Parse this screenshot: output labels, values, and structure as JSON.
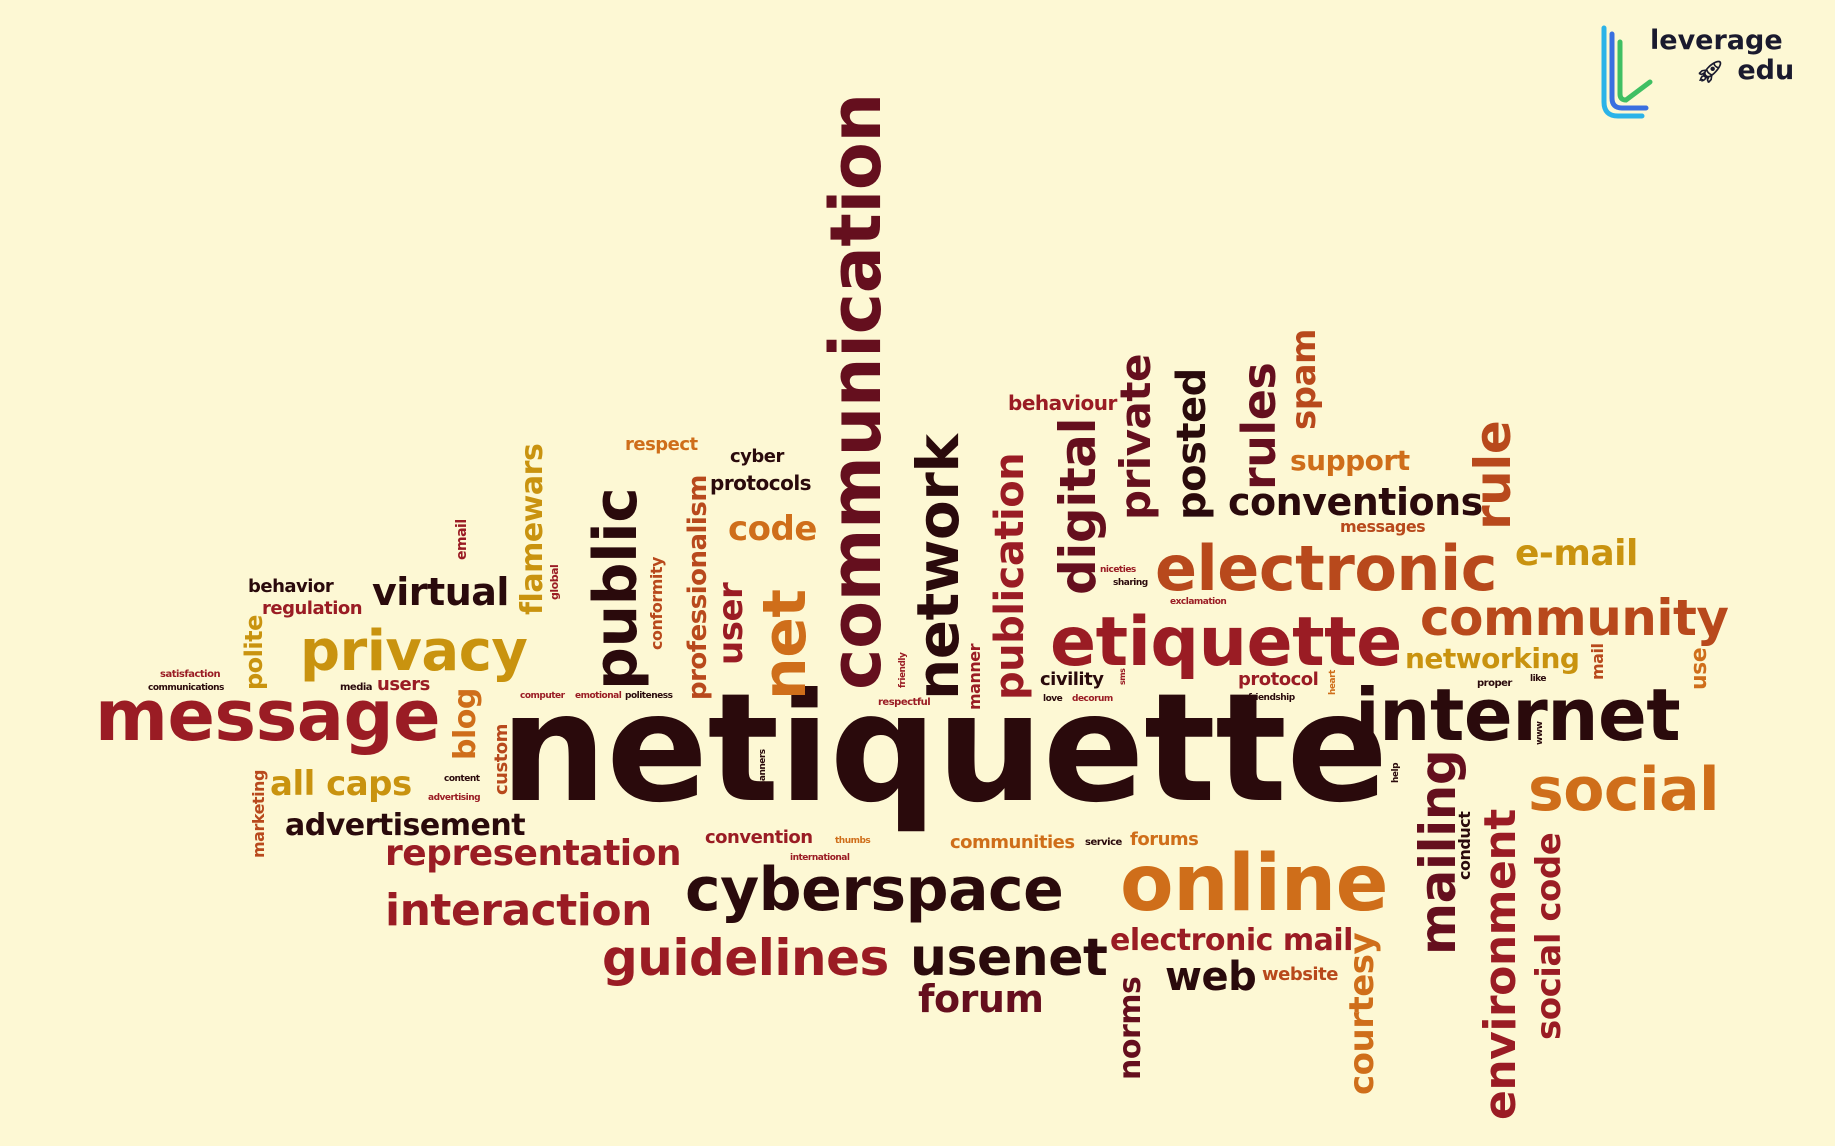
{
  "palette": {
    "background": "#fdf8d4",
    "dark": "#2a0a0c",
    "maroon": "#650f1e",
    "crimson": "#9a1c24",
    "rust": "#b8491c",
    "orange": "#cf6e1a",
    "gold": "#c9930f",
    "brown": "#7a2a14"
  },
  "logo": {
    "line1": "leverage",
    "line2": "edu",
    "icon": "rocket-icon",
    "accent_colors": [
      "#2bb3e8",
      "#3a6fe0",
      "#3fbf63"
    ]
  },
  "words": [
    {
      "text": "netiquette",
      "color": "#2a0a0c"
    },
    {
      "text": "communication",
      "color": "#650f1e"
    },
    {
      "text": "message",
      "color": "#9a1c24"
    },
    {
      "text": "internet",
      "color": "#2a0a0c"
    },
    {
      "text": "etiquette",
      "color": "#9a1c24"
    },
    {
      "text": "electronic",
      "color": "#b8491c"
    },
    {
      "text": "online",
      "color": "#cf6e1a"
    },
    {
      "text": "cyberspace",
      "color": "#2a0a0c"
    },
    {
      "text": "privacy",
      "color": "#c9930f"
    },
    {
      "text": "community",
      "color": "#b8491c"
    },
    {
      "text": "social",
      "color": "#cf6e1a"
    },
    {
      "text": "network",
      "color": "#2a0a0c"
    },
    {
      "text": "public",
      "color": "#2a0a0c"
    },
    {
      "text": "net",
      "color": "#cf6e1a"
    },
    {
      "text": "guidelines",
      "color": "#9a1c24"
    },
    {
      "text": "usenet",
      "color": "#2a0a0c"
    },
    {
      "text": "interaction",
      "color": "#9a1c24"
    },
    {
      "text": "representation",
      "color": "#9a1c24"
    },
    {
      "text": "digital",
      "color": "#650f1e"
    },
    {
      "text": "publication",
      "color": "#9a1c24"
    },
    {
      "text": "private",
      "color": "#650f1e"
    },
    {
      "text": "posted",
      "color": "#2a0a0c"
    },
    {
      "text": "rules",
      "color": "#650f1e"
    },
    {
      "text": "spam",
      "color": "#b8491c"
    },
    {
      "text": "conventions",
      "color": "#2a0a0c"
    },
    {
      "text": "rule",
      "color": "#b8491c"
    },
    {
      "text": "e-mail",
      "color": "#c9930f"
    },
    {
      "text": "mailing",
      "color": "#650f1e"
    },
    {
      "text": "environment",
      "color": "#9a1c24"
    },
    {
      "text": "social code",
      "color": "#9a1c24"
    },
    {
      "text": "courtesy",
      "color": "#cf6e1a"
    },
    {
      "text": "web",
      "color": "#2a0a0c"
    },
    {
      "text": "electronic mail",
      "color": "#9a1c24"
    },
    {
      "text": "norms",
      "color": "#650f1e"
    },
    {
      "text": "forum",
      "color": "#650f1e"
    },
    {
      "text": "virtual",
      "color": "#2a0a0c"
    },
    {
      "text": "flamewars",
      "color": "#c9930f"
    },
    {
      "text": "all caps",
      "color": "#c9930f"
    },
    {
      "text": "advertisement",
      "color": "#2a0a0c"
    },
    {
      "text": "blog",
      "color": "#cf6e1a"
    },
    {
      "text": "code",
      "color": "#cf6e1a"
    },
    {
      "text": "user",
      "color": "#9a1c24"
    },
    {
      "text": "professionalism",
      "color": "#b8491c"
    },
    {
      "text": "networking",
      "color": "#c9930f"
    },
    {
      "text": "support",
      "color": "#cf6e1a"
    },
    {
      "text": "behaviour",
      "color": "#9a1c24"
    },
    {
      "text": "cyber",
      "color": "#2a0a0c"
    },
    {
      "text": "protocols",
      "color": "#2a0a0c"
    },
    {
      "text": "respect",
      "color": "#cf6e1a"
    },
    {
      "text": "behavior",
      "color": "#2a0a0c"
    },
    {
      "text": "regulation",
      "color": "#9a1c24"
    },
    {
      "text": "polite",
      "color": "#c9930f"
    },
    {
      "text": "users",
      "color": "#9a1c24"
    },
    {
      "text": "custom",
      "color": "#b8491c"
    },
    {
      "text": "marketing",
      "color": "#b8491c"
    },
    {
      "text": "convention",
      "color": "#9a1c24"
    },
    {
      "text": "communities",
      "color": "#cf6e1a"
    },
    {
      "text": "forums",
      "color": "#cf6e1a"
    },
    {
      "text": "civility",
      "color": "#2a0a0c"
    },
    {
      "text": "protocol",
      "color": "#9a1c24"
    },
    {
      "text": "messages",
      "color": "#b8491c"
    },
    {
      "text": "use",
      "color": "#cf6e1a"
    },
    {
      "text": "mail",
      "color": "#b8491c"
    },
    {
      "text": "conduct",
      "color": "#2a0a0c"
    },
    {
      "text": "website",
      "color": "#b8491c"
    },
    {
      "text": "conformity",
      "color": "#b8491c"
    },
    {
      "text": "manner",
      "color": "#9a1c24"
    },
    {
      "text": "email",
      "color": "#9a1c24"
    },
    {
      "text": "global",
      "color": "#9a1c24"
    },
    {
      "text": "satisfaction",
      "color": "#9a1c24"
    },
    {
      "text": "communications",
      "color": "#2a0a0c"
    },
    {
      "text": "media",
      "color": "#2a0a0c"
    },
    {
      "text": "computer",
      "color": "#9a1c24"
    },
    {
      "text": "emotional",
      "color": "#9a1c24"
    },
    {
      "text": "politeness",
      "color": "#2a0a0c"
    },
    {
      "text": "content",
      "color": "#2a0a0c"
    },
    {
      "text": "advertising",
      "color": "#9a1c24"
    },
    {
      "text": "friendly",
      "color": "#9a1c24"
    },
    {
      "text": "respectful",
      "color": "#9a1c24"
    },
    {
      "text": "love",
      "color": "#2a0a0c"
    },
    {
      "text": "decorum",
      "color": "#9a1c24"
    },
    {
      "text": "niceties",
      "color": "#9a1c24"
    },
    {
      "text": "sharing",
      "color": "#2a0a0c"
    },
    {
      "text": "sms",
      "color": "#9a1c24"
    },
    {
      "text": "exclamation",
      "color": "#9a1c24"
    },
    {
      "text": "friendship",
      "color": "#2a0a0c"
    },
    {
      "text": "heart",
      "color": "#cf6e1a"
    },
    {
      "text": "proper",
      "color": "#2a0a0c"
    },
    {
      "text": "like",
      "color": "#2a0a0c"
    },
    {
      "text": "www",
      "color": "#2a0a0c"
    },
    {
      "text": "help",
      "color": "#2a0a0c"
    },
    {
      "text": "manners",
      "color": "#2a0a0c"
    },
    {
      "text": "thumbs",
      "color": "#cf6e1a"
    },
    {
      "text": "international",
      "color": "#9a1c24"
    },
    {
      "text": "service",
      "color": "#2a0a0c"
    }
  ]
}
